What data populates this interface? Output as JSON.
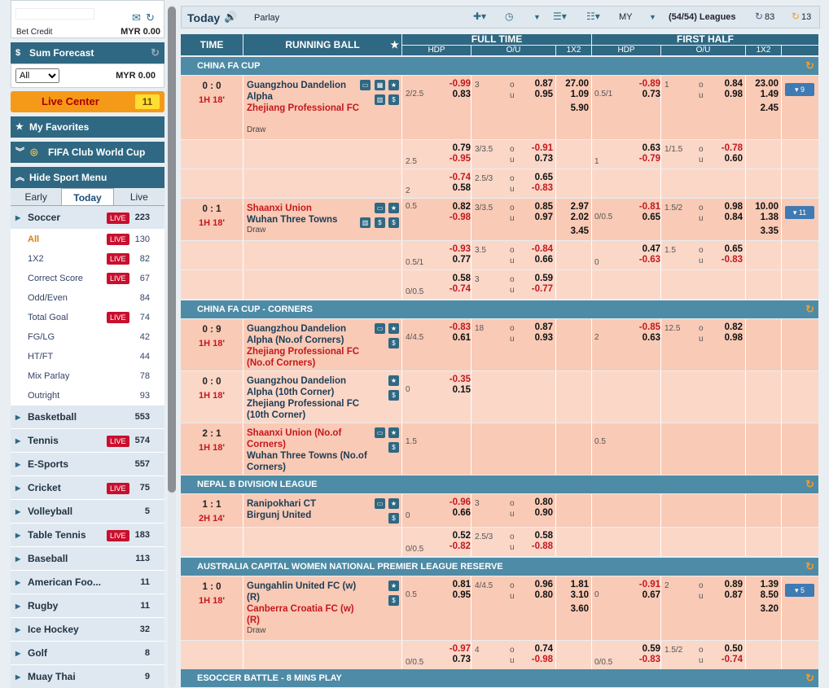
{
  "sidebar": {
    "bet_credit_label": "Bet Credit",
    "bet_credit_value": "MYR 0.00",
    "sum_forecast": "Sum Forecast",
    "forecast_filter": "All",
    "forecast_value": "MYR 0.00",
    "live_center": "Live Center",
    "live_center_count": "11",
    "my_favorites": "My Favorites",
    "club_world_cup": "FIFA Club World Cup",
    "hide_sport_menu": "Hide Sport Menu",
    "tabs": [
      "Early",
      "Today",
      "Live"
    ],
    "live_badge": "LIVE",
    "soccer": {
      "label": "Soccer",
      "count": "223"
    },
    "soccer_sub": [
      {
        "label": "All",
        "count": "130",
        "live": true
      },
      {
        "label": "1X2",
        "count": "82",
        "live": true
      },
      {
        "label": "Correct Score",
        "count": "67",
        "live": true
      },
      {
        "label": "Odd/Even",
        "count": "84",
        "live": false
      },
      {
        "label": "Total Goal",
        "count": "74",
        "live": true
      },
      {
        "label": "FG/LG",
        "count": "42",
        "live": false
      },
      {
        "label": "HT/FT",
        "count": "44",
        "live": false
      },
      {
        "label": "Mix Parlay",
        "count": "78",
        "live": false
      },
      {
        "label": "Outright",
        "count": "93",
        "live": false
      }
    ],
    "sports": [
      {
        "label": "Basketball",
        "count": "553",
        "live": false
      },
      {
        "label": "Tennis",
        "count": "574",
        "live": true
      },
      {
        "label": "E-Sports",
        "count": "557",
        "live": false
      },
      {
        "label": "Cricket",
        "count": "75",
        "live": true
      },
      {
        "label": "Volleyball",
        "count": "5",
        "live": false
      },
      {
        "label": "Table Tennis",
        "count": "183",
        "live": true
      },
      {
        "label": "Baseball",
        "count": "113",
        "live": false
      },
      {
        "label": "American Foo...",
        "count": "11",
        "live": false
      },
      {
        "label": "Rugby",
        "count": "11",
        "live": false
      },
      {
        "label": "Ice Hockey",
        "count": "32",
        "live": false
      },
      {
        "label": "Golf",
        "count": "8",
        "live": false
      },
      {
        "label": "Muay Thai",
        "count": "9",
        "live": false
      }
    ]
  },
  "topbar": {
    "title": "Today",
    "parlay": "Parlay",
    "odds_type": "MY",
    "leagues": "(54/54) Leagues",
    "refresh_count": "83",
    "live_count": "13"
  },
  "headers": {
    "time": "TIME",
    "running_ball": "RUNNING BALL",
    "full_time": "FULL TIME",
    "first_half": "FIRST HALF",
    "hdp": "HDP",
    "ou": "O/U",
    "x12": "1X2",
    "o": "o",
    "u": "u"
  },
  "sections": [
    {
      "name": "CHINA FA CUP"
    },
    {
      "name": "CHINA FA CUP - CORNERS"
    },
    {
      "name": "NEPAL B DIVISION LEAGUE"
    },
    {
      "name": "AUSTRALIA CAPITAL WOMEN NATIONAL PREMIER LEAGUE RESERVE"
    },
    {
      "name": "ESOCCER BATTLE - 8 MINS PLAY"
    }
  ],
  "matches": [
    {
      "score": "0 : 0",
      "time": "1H 18'",
      "home": "Guangzhou Dandelion Alpha",
      "away": "Zhejiang Professional FC",
      "draw": "Draw",
      "more": "9",
      "ft_hdp_line": "2/2.5",
      "ft_hdp_h": "-0.99",
      "ft_hdp_a": "0.83",
      "ft_ou_line": "3",
      "ft_o": "0.87",
      "ft_u": "0.95",
      "ft_1": "27.00",
      "ft_2": "1.09",
      "ft_x": "5.90",
      "fh_hdp_line": "0.5/1",
      "fh_hdp_h": "-0.89",
      "fh_hdp_a": "0.73",
      "fh_ou_line": "1",
      "fh_o": "0.84",
      "fh_u": "0.98",
      "fh_1": "23.00",
      "fh_2": "1.49",
      "fh_x": "2.45"
    },
    {
      "ft_hdp_line": "2.5",
      "ft_hdp_h": "0.79",
      "ft_hdp_a": "-0.95",
      "ft_ou_line": "3/3.5",
      "ft_o": "-0.91",
      "ft_u": "0.73",
      "fh_hdp_line": "1",
      "fh_hdp_h": "0.63",
      "fh_hdp_a": "-0.79",
      "fh_ou_line": "1/1.5",
      "fh_o": "-0.78",
      "fh_u": "0.60"
    },
    {
      "ft_hdp_line": "2",
      "ft_hdp_h": "-0.74",
      "ft_hdp_a": "0.58",
      "ft_ou_line": "2.5/3",
      "ft_o": "0.65",
      "ft_u": "-0.83"
    },
    {
      "score": "0 : 1",
      "time": "1H 18'",
      "home": "Shaanxi Union",
      "away": "Wuhan Three Towns",
      "draw": "Draw",
      "more": "11",
      "ft_hdp_line": "0.5",
      "ft_hdp_h": "0.82",
      "ft_hdp_a": "-0.98",
      "ft_ou_line": "3/3.5",
      "ft_o": "0.85",
      "ft_u": "0.97",
      "ft_1": "2.97",
      "ft_2": "2.02",
      "ft_x": "3.45",
      "fh_hdp_line": "0/0.5",
      "fh_hdp_h": "-0.81",
      "fh_hdp_a": "0.65",
      "fh_ou_line": "1.5/2",
      "fh_o": "0.98",
      "fh_u": "0.84",
      "fh_1": "10.00",
      "fh_2": "1.38",
      "fh_x": "3.35"
    },
    {
      "ft_hdp_line": "0.5/1",
      "ft_hdp_h": "-0.93",
      "ft_hdp_a": "0.77",
      "ft_ou_line": "3.5",
      "ft_o": "-0.84",
      "ft_u": "0.66",
      "fh_hdp_line": "0",
      "fh_hdp_h": "0.47",
      "fh_hdp_a": "-0.63",
      "fh_ou_line": "1.5",
      "fh_o": "0.65",
      "fh_u": "-0.83"
    },
    {
      "ft_hdp_line": "0/0.5",
      "ft_hdp_h": "0.58",
      "ft_hdp_a": "-0.74",
      "ft_ou_line": "3",
      "ft_o": "0.59",
      "ft_u": "-0.77"
    },
    {
      "score": "0 : 9",
      "time": "1H 18'",
      "home": "Guangzhou Dandelion Alpha (No.of Corners)",
      "away": "Zhejiang Professional FC (No.of Corners)",
      "ft_hdp_line": "4/4.5",
      "ft_hdp_h": "-0.83",
      "ft_hdp_a": "0.61",
      "ft_ou_line": "18",
      "ft_o": "0.87",
      "ft_u": "0.93",
      "fh_hdp_line": "2",
      "fh_hdp_h": "-0.85",
      "fh_hdp_a": "0.63",
      "fh_ou_line": "12.5",
      "fh_o": "0.82",
      "fh_u": "0.98"
    },
    {
      "score": "0 : 0",
      "time": "1H 18'",
      "home": "Guangzhou Dandelion Alpha (10th Corner)",
      "away": "Zhejiang Professional FC (10th Corner)",
      "ft_hdp_line": "0",
      "ft_hdp_h": "-0.35",
      "ft_hdp_a": "0.15"
    },
    {
      "score": "2 : 1",
      "time": "1H 18'",
      "home": "Shaanxi Union (No.of Corners)",
      "away": "Wuhan Three Towns (No.of Corners)",
      "ft_hdp_line": "1.5",
      "fh_hdp_line": "0.5"
    },
    {
      "score": "1 : 1",
      "time": "2H 14'",
      "home": "Ranipokhari CT",
      "away": "Birgunj United",
      "ft_hdp_line": "0",
      "ft_hdp_h": "-0.96",
      "ft_hdp_a": "0.66",
      "ft_ou_line": "3",
      "ft_o": "0.80",
      "ft_u": "0.90"
    },
    {
      "ft_hdp_line": "0/0.5",
      "ft_hdp_h": "0.52",
      "ft_hdp_a": "-0.82",
      "ft_ou_line": "2.5/3",
      "ft_o": "0.58",
      "ft_u": "-0.88"
    },
    {
      "score": "1 : 0",
      "time": "1H 18'",
      "home": "Gungahlin United FC (w) (R)",
      "away": "Canberra Croatia FC (w) (R)",
      "draw": "Draw",
      "more": "5",
      "ft_hdp_line": "0.5",
      "ft_hdp_h": "0.81",
      "ft_hdp_a": "0.95",
      "ft_ou_line": "4/4.5",
      "ft_o": "0.96",
      "ft_u": "0.80",
      "ft_1": "1.81",
      "ft_2": "3.10",
      "ft_x": "3.60",
      "fh_hdp_line": "0",
      "fh_hdp_h": "-0.91",
      "fh_hdp_a": "0.67",
      "fh_ou_line": "2",
      "fh_o": "0.89",
      "fh_u": "0.87",
      "fh_1": "1.39",
      "fh_2": "8.50",
      "fh_x": "3.20"
    },
    {
      "ft_hdp_line": "0/0.5",
      "ft_hdp_h": "-0.97",
      "ft_hdp_a": "0.73",
      "ft_ou_line": "4",
      "ft_o": "0.74",
      "ft_u": "-0.98",
      "fh_hdp_line": "0/0.5",
      "fh_hdp_h": "0.59",
      "fh_hdp_a": "-0.83",
      "fh_ou_line": "1.5/2",
      "fh_o": "0.50",
      "fh_u": "-0.74"
    }
  ]
}
